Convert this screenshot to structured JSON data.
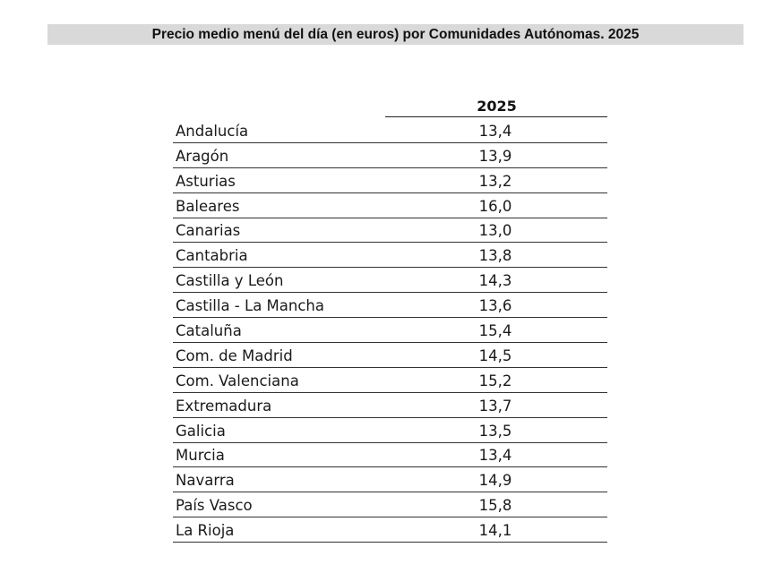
{
  "title": "Precio medio menú del día (en euros) por Comunidades Autónomas. 2025",
  "table": {
    "column_header": "2025",
    "rows": [
      {
        "region": "Andalucía",
        "value": "13,4"
      },
      {
        "region": "Aragón",
        "value": "13,9"
      },
      {
        "region": "Asturias",
        "value": "13,2"
      },
      {
        "region": "Baleares",
        "value": "16,0"
      },
      {
        "region": "Canarias",
        "value": "13,0"
      },
      {
        "region": "Cantabria",
        "value": "13,8"
      },
      {
        "region": "Castilla y León",
        "value": "14,3"
      },
      {
        "region": "Castilla - La Mancha",
        "value": "13,6"
      },
      {
        "region": "Cataluña",
        "value": "15,4"
      },
      {
        "region": "Com. de Madrid",
        "value": "14,5"
      },
      {
        "region": "Com. Valenciana",
        "value": "15,2"
      },
      {
        "region": "Extremadura",
        "value": "13,7"
      },
      {
        "region": "Galicia",
        "value": "13,5"
      },
      {
        "region": "Murcia",
        "value": "13,4"
      },
      {
        "region": "Navarra",
        "value": "14,9"
      },
      {
        "region": "País Vasco",
        "value": "15,8"
      },
      {
        "region": "La Rioja",
        "value": "14,1"
      }
    ]
  },
  "colors": {
    "title_background": "#d9d9d9",
    "text": "#111111",
    "rule_lines": "#333333"
  }
}
